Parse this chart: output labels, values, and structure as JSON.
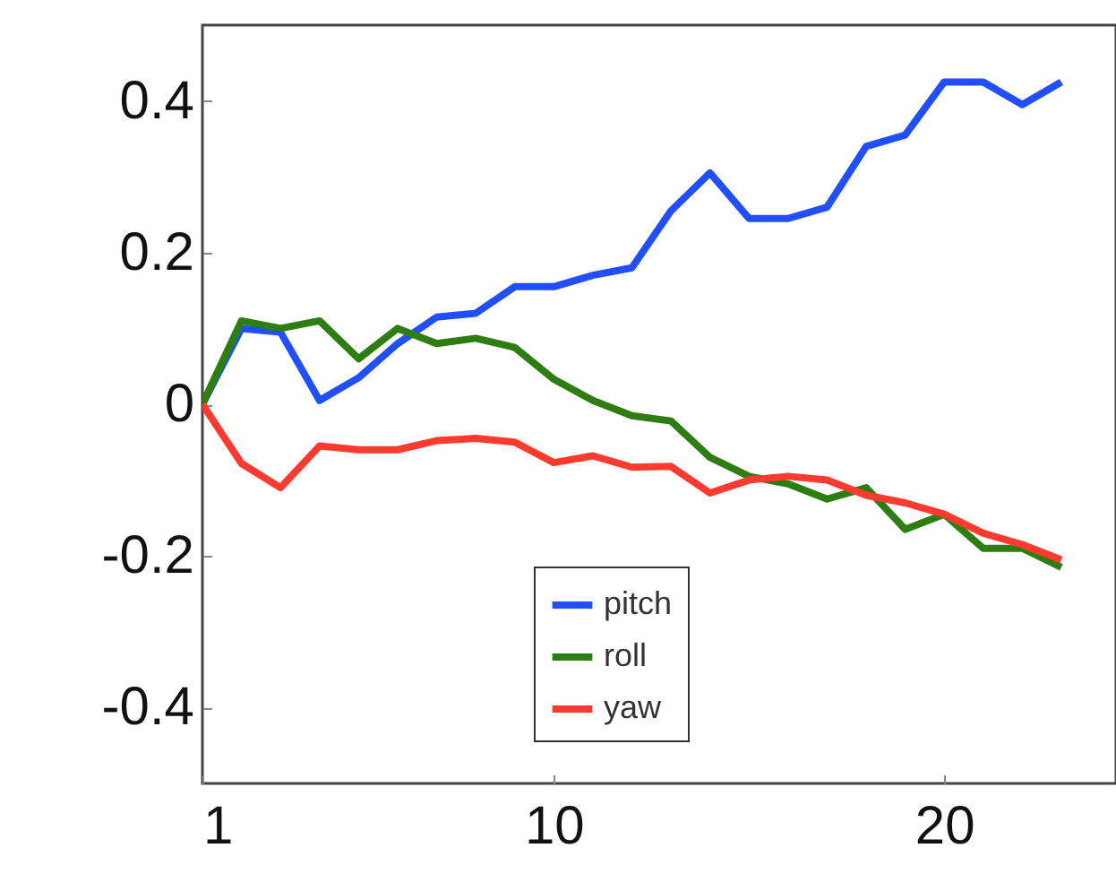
{
  "chart_data": {
    "type": "line",
    "x": [
      1,
      2,
      3,
      4,
      5,
      6,
      7,
      8,
      9,
      10,
      11,
      12,
      13,
      14,
      15,
      16,
      17,
      18,
      19,
      20,
      21,
      22,
      23
    ],
    "series": [
      {
        "name": "pitch",
        "color": "#1f4fff",
        "values": [
          0,
          0.1,
          0.095,
          0.005,
          0.035,
          0.08,
          0.115,
          0.12,
          0.155,
          0.155,
          0.17,
          0.18,
          0.255,
          0.305,
          0.245,
          0.245,
          0.26,
          0.34,
          0.355,
          0.425,
          0.425,
          0.395,
          0.425
        ]
      },
      {
        "name": "roll",
        "color": "#2e7d12",
        "values": [
          0,
          0.11,
          0.1,
          0.11,
          0.06,
          0.1,
          0.08,
          0.087,
          0.075,
          0.033,
          0.005,
          -0.015,
          -0.022,
          -0.07,
          -0.095,
          -0.105,
          -0.125,
          -0.11,
          -0.165,
          -0.145,
          -0.19,
          -0.19,
          -0.215
        ]
      },
      {
        "name": "yaw",
        "color": "#ff3b30",
        "values": [
          0,
          -0.078,
          -0.11,
          -0.055,
          -0.06,
          -0.06,
          -0.048,
          -0.045,
          -0.05,
          -0.077,
          -0.068,
          -0.083,
          -0.082,
          -0.117,
          -0.1,
          -0.095,
          -0.1,
          -0.12,
          -0.13,
          -0.145,
          -0.17,
          -0.185,
          -0.205
        ]
      }
    ],
    "xlim": [
      1,
      24.4
    ],
    "xticks": [
      1,
      10,
      20
    ],
    "ylim": [
      -0.5,
      0.5
    ],
    "yticks": [
      -0.4,
      -0.2,
      0,
      0.2,
      0.4
    ],
    "grid": false,
    "legend": "bottom",
    "line_style": "solid"
  }
}
